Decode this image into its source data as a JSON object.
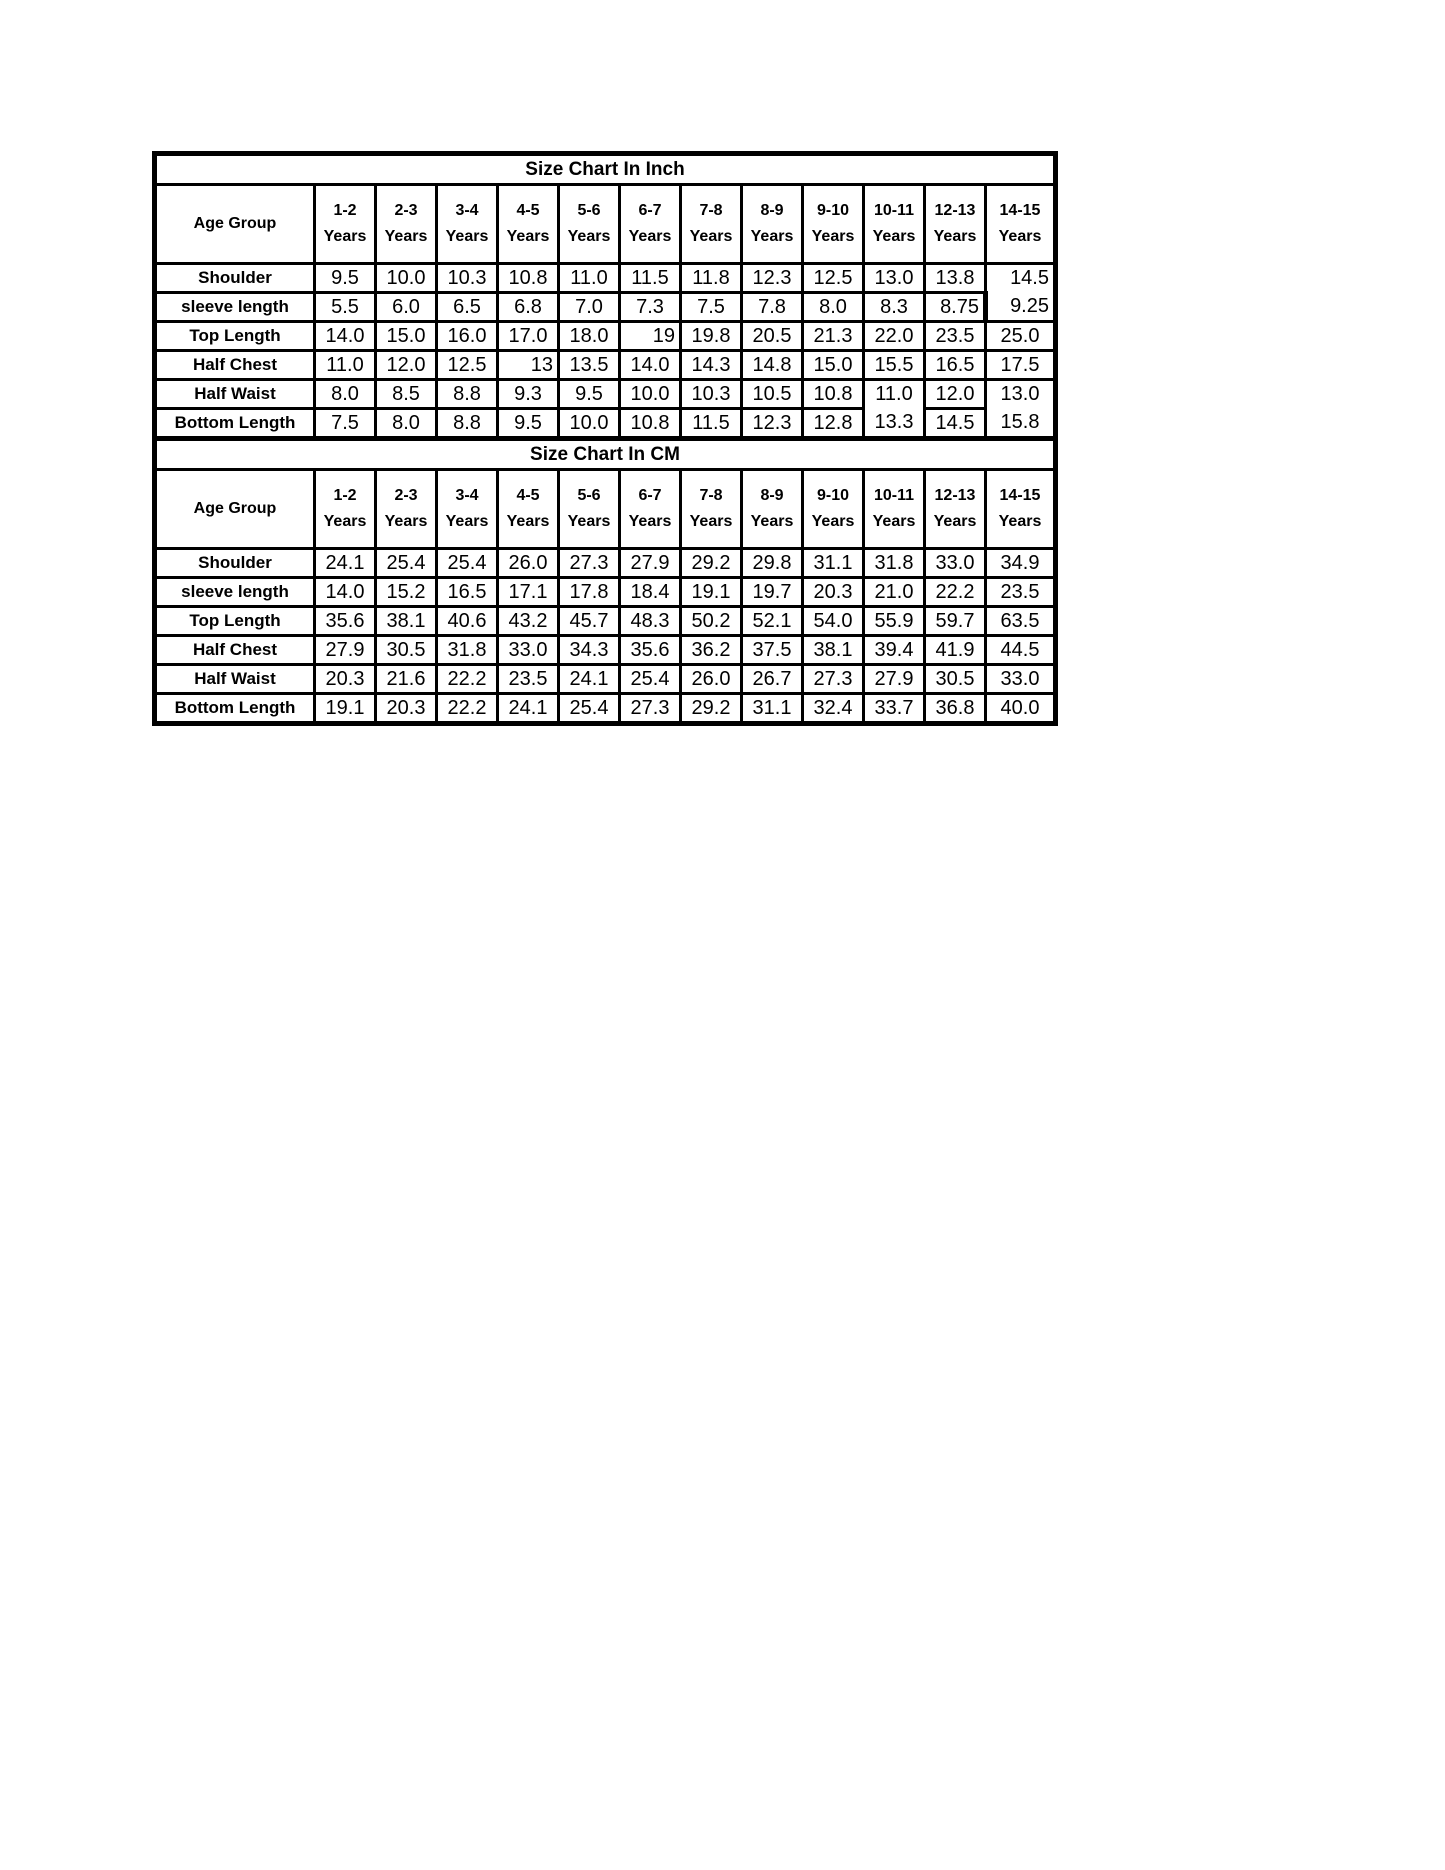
{
  "document": {
    "corner_label": "Age Group",
    "column_suffix": "Years",
    "age_columns": [
      "1-2",
      "2-3",
      "3-4",
      "4-5",
      "5-6",
      "6-7",
      "7-8",
      "8-9",
      "9-10",
      "10-11",
      "12-13",
      "14-15"
    ],
    "colors": {
      "border": "#000000",
      "background": "#ffffff",
      "text": "#000000"
    },
    "sections": [
      {
        "title": "Size Chart In Inch",
        "rows": [
          {
            "label": "Shoulder",
            "values": [
              "9.5",
              "10.0",
              "10.3",
              "10.8",
              "11.0",
              "11.5",
              "11.8",
              "12.3",
              "12.5",
              "13.0",
              "13.8",
              "14.5"
            ]
          },
          {
            "label": "sleeve length",
            "values": [
              "5.5",
              "6.0",
              "6.5",
              "6.8",
              "7.0",
              "7.3",
              "7.5",
              "7.8",
              "8.0",
              "8.3",
              "8.75",
              "9.25"
            ]
          },
          {
            "label": "Top Length",
            "values": [
              "14.0",
              "15.0",
              "16.0",
              "17.0",
              "18.0",
              "19",
              "19.8",
              "20.5",
              "21.3",
              "22.0",
              "23.5",
              "25.0"
            ]
          },
          {
            "label": "Half Chest",
            "values": [
              "11.0",
              "12.0",
              "12.5",
              "13",
              "13.5",
              "14.0",
              "14.3",
              "14.8",
              "15.0",
              "15.5",
              "16.5",
              "17.5"
            ]
          },
          {
            "label": "Half Waist",
            "values": [
              "8.0",
              "8.5",
              "8.8",
              "9.3",
              "9.5",
              "10.0",
              "10.3",
              "10.5",
              "10.8",
              "11.0",
              "12.0",
              "13.0"
            ]
          },
          {
            "label": "Bottom Length",
            "values": [
              "7.5",
              "8.0",
              "8.8",
              "9.5",
              "10.0",
              "10.8",
              "11.5",
              "12.3",
              "12.8",
              "13.3",
              "14.5",
              "15.8"
            ]
          }
        ],
        "right_aligned_cells": [
          [
            0,
            11
          ],
          [
            1,
            10
          ],
          [
            1,
            11
          ],
          [
            2,
            5
          ],
          [
            3,
            3
          ]
        ],
        "missing_row_dividers_below": [
          [
            0,
            11
          ],
          [
            4,
            9
          ],
          [
            4,
            11
          ]
        ],
        "thick_right_border_cells": [
          [
            1,
            10
          ]
        ]
      },
      {
        "title": "Size Chart In CM",
        "rows": [
          {
            "label": "Shoulder",
            "values": [
              "24.1",
              "25.4",
              "25.4",
              "26.0",
              "27.3",
              "27.9",
              "29.2",
              "29.8",
              "31.1",
              "31.8",
              "33.0",
              "34.9"
            ]
          },
          {
            "label": "sleeve length",
            "values": [
              "14.0",
              "15.2",
              "16.5",
              "17.1",
              "17.8",
              "18.4",
              "19.1",
              "19.7",
              "20.3",
              "21.0",
              "22.2",
              "23.5"
            ]
          },
          {
            "label": "Top Length",
            "values": [
              "35.6",
              "38.1",
              "40.6",
              "43.2",
              "45.7",
              "48.3",
              "50.2",
              "52.1",
              "54.0",
              "55.9",
              "59.7",
              "63.5"
            ]
          },
          {
            "label": "Half Chest",
            "values": [
              "27.9",
              "30.5",
              "31.8",
              "33.0",
              "34.3",
              "35.6",
              "36.2",
              "37.5",
              "38.1",
              "39.4",
              "41.9",
              "44.5"
            ]
          },
          {
            "label": "Half Waist",
            "values": [
              "20.3",
              "21.6",
              "22.2",
              "23.5",
              "24.1",
              "25.4",
              "26.0",
              "26.7",
              "27.3",
              "27.9",
              "30.5",
              "33.0"
            ]
          },
          {
            "label": "Bottom Length",
            "values": [
              "19.1",
              "20.3",
              "22.2",
              "24.1",
              "25.4",
              "27.3",
              "29.2",
              "31.1",
              "32.4",
              "33.7",
              "36.8",
              "40.0"
            ]
          }
        ],
        "right_aligned_cells": [],
        "missing_row_dividers_below": [],
        "thick_right_border_cells": []
      }
    ]
  }
}
